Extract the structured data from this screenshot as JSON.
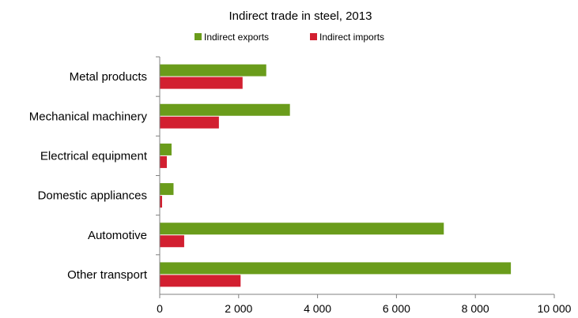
{
  "chart_data": {
    "type": "bar",
    "orientation": "horizontal",
    "title": "Indirect trade in steel, 2013",
    "xlabel": "",
    "ylabel": "",
    "categories": [
      "Metal products",
      "Mechanical machinery",
      "Electrical equipment",
      "Domestic appliances",
      "Automotive",
      "Other transport"
    ],
    "series": [
      {
        "name": "Indirect exports",
        "color": "#6a9c1b",
        "values": [
          2700,
          3300,
          300,
          350,
          7200,
          8900
        ]
      },
      {
        "name": "Indirect imports",
        "color": "#d21f30",
        "values": [
          2100,
          1500,
          180,
          60,
          620,
          2050
        ]
      }
    ],
    "xlim": [
      0,
      10000
    ],
    "xticks": [
      0,
      2000,
      4000,
      6000,
      8000,
      10000
    ],
    "xtick_labels": [
      "0",
      "2 000",
      "4 000",
      "6 000",
      "8 000",
      "10 000"
    ],
    "grid": false,
    "legend_position": "top-center"
  }
}
